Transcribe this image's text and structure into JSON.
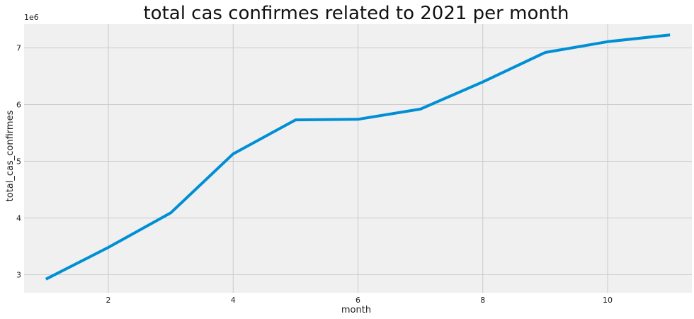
{
  "chart_data": {
    "type": "line",
    "title": "total cas confirmes related to 2021 per month",
    "xlabel": "month",
    "ylabel": "total_cas_confirmes",
    "y_offset_label": "1e6",
    "y_scale": 1000000,
    "xlim": [
      0.65,
      11.35
    ],
    "ylim": [
      2680000,
      7420000
    ],
    "x_ticks": [
      2,
      4,
      6,
      8,
      10
    ],
    "x_tick_labels": [
      "2",
      "4",
      "6",
      "8",
      "10"
    ],
    "y_ticks": [
      3000000,
      4000000,
      5000000,
      6000000,
      7000000
    ],
    "y_tick_labels": [
      "3",
      "4",
      "5",
      "6",
      "7"
    ],
    "grid": true,
    "colors": {
      "line": "#008fd5",
      "plot_background": "#f0f0f0",
      "grid": "#cbcbcb",
      "figure_background": "#ffffff"
    },
    "series": [
      {
        "x": [
          1,
          2,
          3,
          4,
          5,
          6,
          7,
          8,
          9,
          10,
          11
        ],
        "values": [
          2920000,
          3480000,
          4090000,
          5130000,
          5730000,
          5740000,
          5920000,
          6400000,
          6920000,
          7110000,
          7230000
        ]
      }
    ]
  }
}
